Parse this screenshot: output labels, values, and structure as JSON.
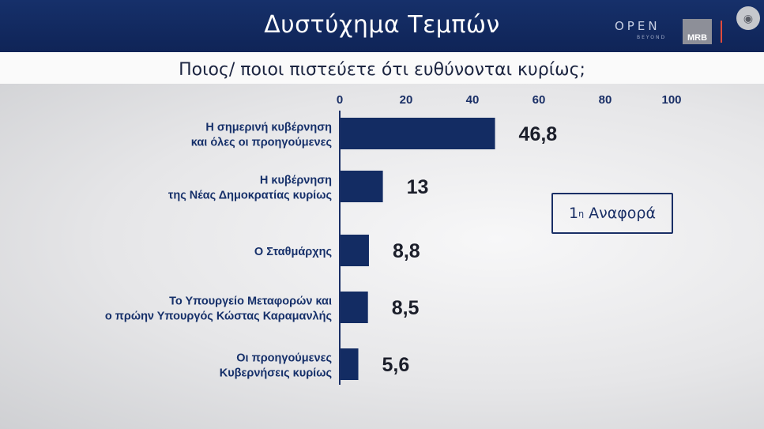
{
  "header": {
    "title": "Δυστύχημα Τεμπών",
    "logo_text": "OPEN",
    "logo_subtext": "BEYOND",
    "badge": "MRB",
    "camera_icon": "camera-icon"
  },
  "subtitle": "Ποιος/ ποιοι πιστεύετε ότι ευθύνονται κυρίως;",
  "note_box": {
    "number": "1",
    "suffix": "η",
    "text": "Αναφορά"
  },
  "colors": {
    "bar": "#132c63",
    "header": "#16306a",
    "axis": "#1a2f66"
  },
  "chart_data": {
    "type": "bar",
    "orientation": "horizontal",
    "x_ticks": [
      "0",
      "20",
      "40",
      "60",
      "80",
      "100"
    ],
    "xlim": [
      0,
      100
    ],
    "categories": [
      [
        "Η σημερινή κυβέρνηση",
        "και όλες οι προηγούμενες"
      ],
      [
        "Η κυβέρνηση",
        "της Νέας Δημοκρατίας κυρίως"
      ],
      [
        "Ο Σταθμάρχης"
      ],
      [
        "Το Υπουργείο Μεταφορών και",
        "ο πρώην Υπουργός Κώστας Καραμανλής"
      ],
      [
        "Οι προηγούμενες",
        "Κυβερνήσεις κυρίως"
      ]
    ],
    "values": [
      46.8,
      13,
      8.8,
      8.5,
      5.6
    ],
    "value_labels": [
      "46,8",
      "13",
      "8,8",
      "8,5",
      "5,6"
    ],
    "grid": false,
    "legend": "none"
  }
}
